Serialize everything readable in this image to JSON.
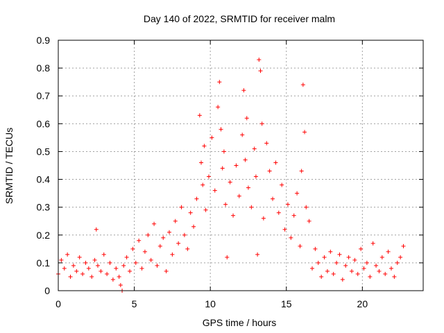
{
  "chart_data": {
    "type": "scatter",
    "title": "Day 140 of 2022, SRMTID for receiver malm",
    "xlabel": "GPS time / hours",
    "ylabel": "SRMTID / TECUs",
    "xlim": [
      0,
      24
    ],
    "ylim": [
      0,
      0.9
    ],
    "x_ticks": [
      0,
      5,
      10,
      15,
      20
    ],
    "x_tick_labels": [
      "0",
      "5",
      "10",
      "15",
      "20"
    ],
    "y_ticks": [
      0,
      0.1,
      0.2,
      0.3,
      0.4,
      0.5,
      0.6,
      0.7,
      0.8,
      0.9
    ],
    "y_tick_labels": [
      "0",
      "0.1",
      "0.2",
      "0.3",
      "0.4",
      "0.5",
      "0.6",
      "0.7",
      "0.8",
      "0.9"
    ],
    "grid": true,
    "marker": "+",
    "color": "#ff0000",
    "series": [
      {
        "name": "SRMTID",
        "x": [
          0.0,
          0.2,
          0.4,
          0.6,
          0.8,
          1.0,
          1.2,
          1.4,
          1.6,
          1.8,
          2.0,
          2.2,
          2.4,
          2.5,
          2.6,
          2.8,
          3.0,
          3.2,
          3.4,
          3.6,
          3.8,
          4.0,
          4.1,
          4.2,
          4.3,
          4.5,
          4.7,
          4.9,
          5.1,
          5.3,
          5.5,
          5.7,
          5.9,
          6.1,
          6.3,
          6.5,
          6.7,
          6.9,
          7.1,
          7.3,
          7.5,
          7.7,
          7.9,
          8.1,
          8.3,
          8.5,
          8.7,
          8.9,
          9.1,
          9.3,
          9.4,
          9.5,
          9.6,
          9.7,
          9.9,
          10.1,
          10.3,
          10.5,
          10.6,
          10.7,
          10.8,
          10.9,
          11.0,
          11.1,
          11.3,
          11.5,
          11.7,
          11.9,
          12.1,
          12.2,
          12.3,
          12.4,
          12.5,
          12.7,
          12.9,
          13.0,
          13.1,
          13.2,
          13.3,
          13.4,
          13.5,
          13.7,
          13.9,
          14.1,
          14.3,
          14.5,
          14.7,
          14.9,
          15.1,
          15.3,
          15.5,
          15.7,
          15.9,
          16.0,
          16.1,
          16.2,
          16.3,
          16.5,
          16.7,
          16.9,
          17.1,
          17.3,
          17.5,
          17.7,
          17.9,
          18.1,
          18.3,
          18.5,
          18.7,
          18.9,
          19.1,
          19.3,
          19.5,
          19.7,
          19.9,
          20.1,
          20.3,
          20.5,
          20.7,
          20.9,
          21.1,
          21.3,
          21.5,
          21.7,
          21.9,
          22.1,
          22.3,
          22.5,
          22.7
        ],
        "y": [
          0.06,
          0.11,
          0.08,
          0.13,
          0.05,
          0.09,
          0.07,
          0.12,
          0.06,
          0.1,
          0.08,
          0.05,
          0.11,
          0.22,
          0.09,
          0.07,
          0.13,
          0.06,
          0.1,
          0.04,
          0.08,
          0.05,
          0.02,
          0.0,
          0.09,
          0.12,
          0.07,
          0.15,
          0.1,
          0.18,
          0.08,
          0.14,
          0.2,
          0.11,
          0.24,
          0.09,
          0.16,
          0.19,
          0.07,
          0.21,
          0.13,
          0.25,
          0.17,
          0.3,
          0.2,
          0.15,
          0.28,
          0.23,
          0.33,
          0.63,
          0.46,
          0.38,
          0.52,
          0.29,
          0.41,
          0.55,
          0.36,
          0.66,
          0.75,
          0.58,
          0.44,
          0.5,
          0.31,
          0.12,
          0.39,
          0.27,
          0.45,
          0.34,
          0.56,
          0.72,
          0.47,
          0.62,
          0.37,
          0.3,
          0.51,
          0.41,
          0.13,
          0.83,
          0.79,
          0.6,
          0.26,
          0.53,
          0.43,
          0.33,
          0.46,
          0.28,
          0.38,
          0.22,
          0.31,
          0.19,
          0.27,
          0.35,
          0.16,
          0.43,
          0.74,
          0.57,
          0.3,
          0.25,
          0.08,
          0.15,
          0.1,
          0.05,
          0.12,
          0.07,
          0.14,
          0.06,
          0.1,
          0.13,
          0.04,
          0.09,
          0.12,
          0.07,
          0.11,
          0.06,
          0.15,
          0.08,
          0.1,
          0.05,
          0.17,
          0.09,
          0.07,
          0.12,
          0.06,
          0.14,
          0.08,
          0.05,
          0.1,
          0.12,
          0.16
        ]
      }
    ]
  }
}
